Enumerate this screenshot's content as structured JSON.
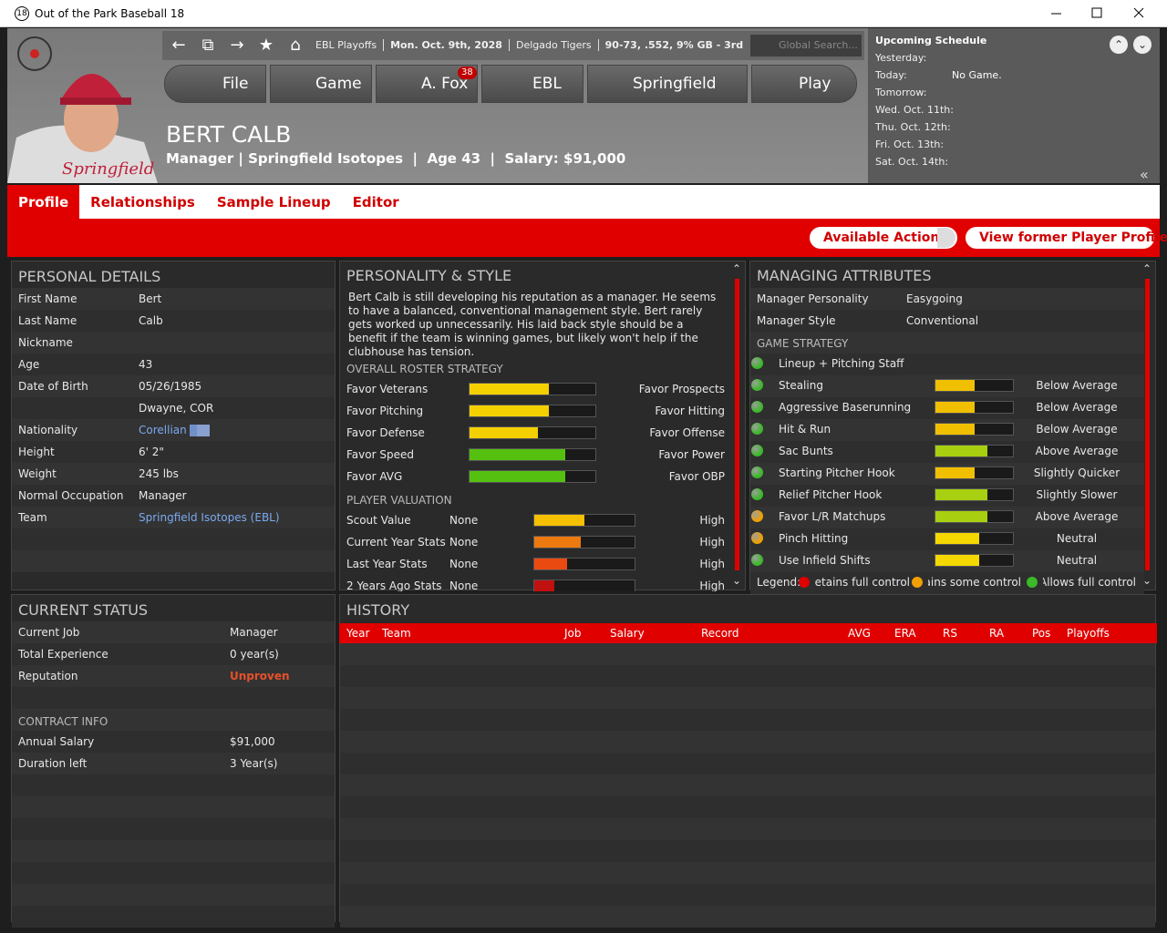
{
  "window": {
    "icon": "18",
    "title": "Out of the Park Baseball 18"
  },
  "nav": {
    "breadcrumb": [
      "EBL Playoffs",
      "Mon. Oct. 9th, 2028",
      "Delgado Tigers",
      "90-73, .552, 9% GB - 3rd"
    ],
    "search": "Global Search..."
  },
  "menu": [
    {
      "label": "File"
    },
    {
      "label": "Game"
    },
    {
      "label": "A. Fox",
      "badge": 38
    },
    {
      "label": "EBL"
    },
    {
      "label": "Springfield"
    },
    {
      "label": "Play"
    }
  ],
  "person": {
    "name": "BERT CALB",
    "info": "Manager | Springfield Isotopes  |  Age 43  |  Salary: $91,000"
  },
  "schedule": {
    "title": "Upcoming Schedule",
    "days": [
      {
        "day": "Yesterday:"
      },
      {
        "day": "Today:",
        "game": "No Game."
      },
      {
        "day": "Tomorrow:"
      },
      {
        "day": "Wed. Oct. 11th:"
      },
      {
        "day": "Thu. Oct. 12th:"
      },
      {
        "day": "Fri. Oct. 13th:"
      },
      {
        "day": "Sat. Oct. 14th:"
      }
    ]
  },
  "tabs": [
    "Profile",
    "Relationships",
    "Sample Lineup",
    "Editor"
  ],
  "active_tab": 0,
  "actions": [
    "Available Actions",
    "View former Player Profile"
  ],
  "personal_details": {
    "title": "PERSONAL DETAILS",
    "rows": [
      {
        "label": "First Name",
        "value": "Bert"
      },
      {
        "label": "Last Name",
        "value": "Calb"
      },
      {
        "label": "Nickname"
      },
      {
        "label": "Age",
        "value": "43"
      },
      {
        "label": "Date of Birth",
        "value": "05/26/1985"
      },
      {
        "value": "Dwayne, COR"
      },
      {
        "label": "Nationality",
        "value": "Corellian",
        "link": true
      },
      {
        "label": "Height",
        "value": "6' 2\""
      },
      {
        "label": "Weight",
        "value": "245 lbs"
      },
      {
        "label": "Normal Occupation",
        "value": "Manager"
      },
      {
        "label": "Team",
        "value": "Springfield Isotopes (EBL)",
        "link": true
      }
    ]
  },
  "personality": {
    "title": "PERSONALITY & STYLE",
    "text": "Bert Calb is still developing his reputation as a manager.  He seems to have a balanced, conventional management style. Bert rarely gets worked up unnecessarily. His laid back style should be a benefit if the team is winning games, but likely won't help if the clubhouse has tension.",
    "roster_title": "OVERALL ROSTER STRATEGY",
    "roster": [
      {
        "left": "Favor Veterans",
        "right": "Favor Prospects",
        "level": 0.63,
        "color": "#f5d000"
      },
      {
        "left": "Favor Pitching",
        "right": "Favor Hitting",
        "level": 0.63,
        "color": "#f5d000"
      },
      {
        "left": "Favor Defense",
        "right": "Favor Offense",
        "level": 0.54,
        "color": "#f5d000"
      },
      {
        "left": "Favor Speed",
        "right": "Favor Power",
        "level": 0.76,
        "color": "#55c010"
      },
      {
        "left": "Favor AVG",
        "right": "Favor OBP",
        "level": 0.76,
        "color": "#55c010"
      }
    ],
    "valuation_title": "PLAYER VALUATION",
    "valuation": [
      {
        "label": "Scout Value",
        "value": "None",
        "level": 0.5,
        "color": "#f5c000",
        "high": "High"
      },
      {
        "label": "Current Year Stats",
        "value": "None",
        "level": 0.46,
        "color": "#ec7a10",
        "high": "High"
      },
      {
        "label": "Last Year Stats",
        "value": "None",
        "level": 0.33,
        "color": "#ea4a10",
        "high": "High"
      },
      {
        "label": "2 Years Ago Stats",
        "value": "None",
        "level": 0.2,
        "color": "#c01010",
        "high": "High"
      }
    ]
  },
  "managing": {
    "title": "MANAGING ATTRIBUTES",
    "rows": [
      {
        "label": "Manager Personality",
        "value": "Easygoing"
      },
      {
        "label": "Manager Style",
        "value": "Conventional"
      }
    ],
    "strategy_title": "GAME STRATEGY",
    "strategy": [
      {
        "label": "Lineup + Pitching Staff",
        "control": "#3cb82a"
      },
      {
        "label": "Stealing",
        "level": 0.5,
        "color": "#f0c000",
        "value": "Below Average",
        "control": "#3cb82a"
      },
      {
        "label": "Aggressive Baserunning",
        "level": 0.5,
        "color": "#f0c000",
        "value": "Below Average",
        "control": "#3cb82a"
      },
      {
        "label": "Hit & Run",
        "level": 0.5,
        "color": "#f0c000",
        "value": "Below Average",
        "control": "#3cb82a"
      },
      {
        "label": "Sac Bunts",
        "level": 0.67,
        "color": "#a8d010",
        "value": "Above Average",
        "control": "#3cb82a"
      },
      {
        "label": "Starting Pitcher Hook",
        "level": 0.5,
        "color": "#f0c000",
        "value": "Slightly Quicker",
        "control": "#3cb82a"
      },
      {
        "label": "Relief Pitcher Hook",
        "level": 0.67,
        "color": "#a8d010",
        "value": "Slightly Slower",
        "control": "#3cb82a"
      },
      {
        "label": "Favor L/R Matchups",
        "level": 0.67,
        "color": "#a8d010",
        "value": "Above Average",
        "control": "#f0a000"
      },
      {
        "label": "Pinch Hitting",
        "level": 0.57,
        "color": "#f5d800",
        "value": "Neutral",
        "control": "#f0a000"
      },
      {
        "label": "Use Infield Shifts",
        "level": 0.57,
        "color": "#f5d800",
        "value": "Neutral",
        "control": "#3cb82a"
      }
    ],
    "legend": {
      "title": "Legend:",
      "items": [
        {
          "label": "Retains full control",
          "color": "#e00000"
        },
        {
          "label": "Retains some control",
          "color": "#f0a000"
        },
        {
          "label": "Allows full control",
          "color": "#3cb82a"
        }
      ]
    }
  },
  "current_status": {
    "title": "CURRENT STATUS",
    "rows": [
      {
        "label": "Current Job",
        "value": "Manager"
      },
      {
        "label": "Total Experience",
        "value": "0 year(s)"
      },
      {
        "label": "Reputation",
        "value": "Unproven",
        "color": "#e8502a"
      }
    ],
    "contract_title": "CONTRACT INFO",
    "contract": [
      {
        "label": "Annual Salary",
        "value": "$91,000"
      },
      {
        "label": "Duration left",
        "value": "3 Year(s)"
      }
    ]
  },
  "history": {
    "title": "HISTORY",
    "columns": [
      "Year",
      "Team",
      "Job",
      "Salary",
      "Record",
      "AVG",
      "ERA",
      "RS",
      "RA",
      "Pos",
      "Playoffs"
    ]
  }
}
